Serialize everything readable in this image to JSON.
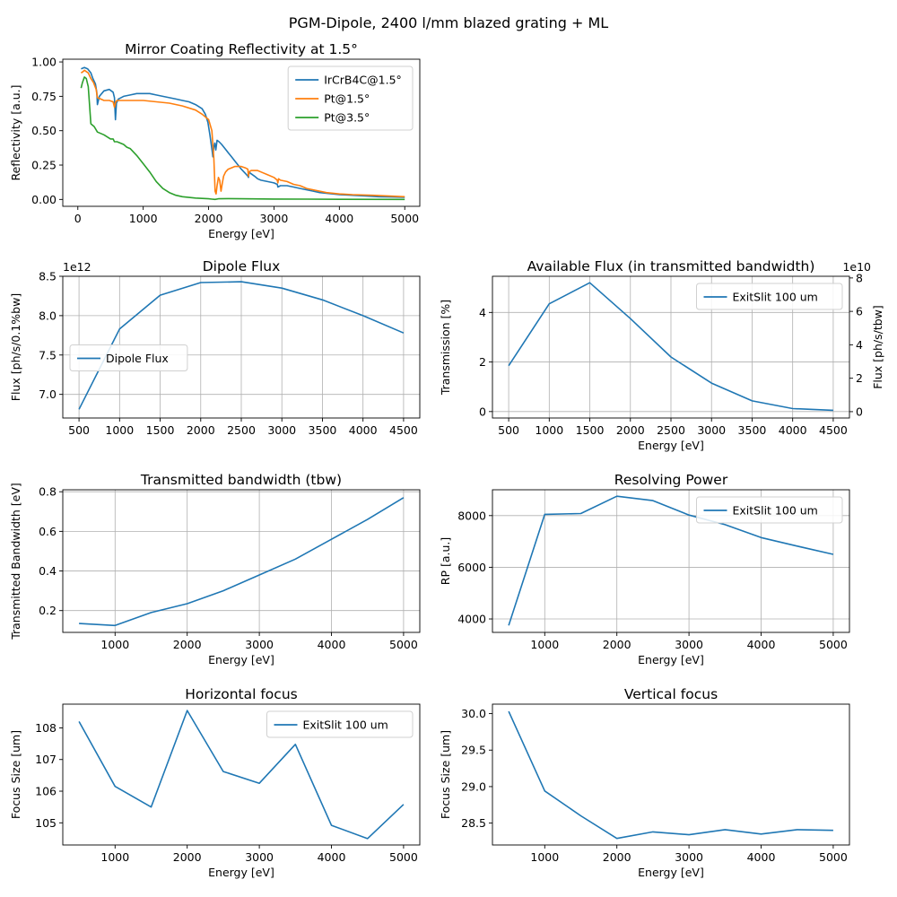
{
  "figure": {
    "suptitle": "PGM-Dipole, 2400 l/mm blazed grating + ML"
  },
  "colors": {
    "blue": "#1f77b4",
    "orange": "#ff7f0e",
    "green": "#2ca02c",
    "grid": "#b0b0b0"
  },
  "chart_data": [
    {
      "id": "reflectivity",
      "type": "line",
      "title": "Mirror Coating Reflectivity at 1.5°",
      "xlabel": "Energy [eV]",
      "ylabel": "Reflectivity [a.u.]",
      "xlim": [
        -230,
        5230
      ],
      "ylim": [
        -0.05,
        1.02
      ],
      "xticks": [
        0,
        1000,
        2000,
        3000,
        4000,
        5000
      ],
      "yticks": [
        0.0,
        0.25,
        0.5,
        0.75,
        1.0
      ],
      "ytick_decimals": 2,
      "grid": false,
      "legend": "upper right",
      "series": [
        {
          "name": "IrCrB4C@1.5°",
          "color": "#1f77b4",
          "x": [
            50,
            100,
            150,
            200,
            230,
            270,
            290,
            300,
            330,
            400,
            480,
            540,
            560,
            575,
            590,
            620,
            700,
            800,
            900,
            1000,
            1100,
            1200,
            1300,
            1400,
            1500,
            1600,
            1700,
            1800,
            1900,
            1950,
            1990,
            2020,
            2040,
            2055,
            2065,
            2080,
            2095,
            2110,
            2130,
            2160,
            2200,
            2250,
            2300,
            2350,
            2400,
            2450,
            2500,
            2560,
            2600,
            2610,
            2620,
            2640,
            2700,
            2750,
            2800,
            2900,
            3000,
            3050,
            3060,
            3100,
            3200,
            3300,
            3400,
            3500,
            3600,
            3700,
            3800,
            3900,
            4000,
            4200,
            4400,
            4600,
            4800,
            5000
          ],
          "y": [
            0.95,
            0.96,
            0.95,
            0.92,
            0.88,
            0.84,
            0.78,
            0.69,
            0.75,
            0.79,
            0.8,
            0.78,
            0.74,
            0.58,
            0.7,
            0.73,
            0.75,
            0.76,
            0.77,
            0.77,
            0.77,
            0.76,
            0.75,
            0.74,
            0.73,
            0.72,
            0.71,
            0.69,
            0.66,
            0.62,
            0.56,
            0.47,
            0.4,
            0.35,
            0.31,
            0.38,
            0.41,
            0.36,
            0.43,
            0.42,
            0.4,
            0.37,
            0.34,
            0.31,
            0.28,
            0.25,
            0.22,
            0.19,
            0.17,
            0.16,
            0.2,
            0.19,
            0.17,
            0.15,
            0.14,
            0.13,
            0.12,
            0.11,
            0.09,
            0.1,
            0.1,
            0.09,
            0.08,
            0.07,
            0.06,
            0.05,
            0.045,
            0.04,
            0.035,
            0.03,
            0.025,
            0.02,
            0.018,
            0.015
          ]
        },
        {
          "name": "Pt@1.5°",
          "color": "#ff7f0e",
          "x": [
            50,
            80,
            100,
            130,
            160,
            200,
            240,
            280,
            300,
            350,
            400,
            480,
            540,
            560,
            580,
            600,
            700,
            800,
            900,
            1000,
            1200,
            1400,
            1600,
            1800,
            1900,
            2000,
            2050,
            2080,
            2100,
            2115,
            2130,
            2150,
            2170,
            2190,
            2210,
            2230,
            2260,
            2300,
            2350,
            2400,
            2500,
            2560,
            2600,
            2610,
            2620,
            2650,
            2700,
            2750,
            2800,
            2900,
            3000,
            3050,
            3060,
            3070,
            3100,
            3200,
            3300,
            3400,
            3500,
            3600,
            3800,
            4000,
            4200,
            4500,
            5000
          ],
          "y": [
            0.92,
            0.93,
            0.94,
            0.93,
            0.92,
            0.88,
            0.85,
            0.8,
            0.74,
            0.73,
            0.72,
            0.72,
            0.71,
            0.67,
            0.71,
            0.72,
            0.72,
            0.72,
            0.72,
            0.72,
            0.71,
            0.7,
            0.68,
            0.65,
            0.62,
            0.58,
            0.5,
            0.3,
            0.06,
            0.04,
            0.1,
            0.16,
            0.14,
            0.06,
            0.12,
            0.17,
            0.2,
            0.22,
            0.23,
            0.24,
            0.24,
            0.23,
            0.22,
            0.17,
            0.2,
            0.21,
            0.21,
            0.21,
            0.2,
            0.18,
            0.16,
            0.14,
            0.12,
            0.15,
            0.14,
            0.13,
            0.11,
            0.1,
            0.08,
            0.07,
            0.05,
            0.04,
            0.035,
            0.03,
            0.02
          ]
        },
        {
          "name": "Pt@3.5°",
          "color": "#2ca02c",
          "x": [
            50,
            70,
            100,
            130,
            160,
            180,
            200,
            250,
            300,
            400,
            500,
            540,
            560,
            600,
            700,
            750,
            800,
            900,
            1000,
            1100,
            1200,
            1300,
            1400,
            1500,
            1600,
            1800,
            2000,
            2050,
            2080,
            2100,
            2150,
            2300,
            2500,
            3000,
            3500,
            4000,
            5000
          ],
          "y": [
            0.81,
            0.85,
            0.89,
            0.88,
            0.82,
            0.68,
            0.55,
            0.53,
            0.49,
            0.47,
            0.44,
            0.44,
            0.42,
            0.42,
            0.4,
            0.38,
            0.37,
            0.32,
            0.26,
            0.2,
            0.13,
            0.08,
            0.05,
            0.03,
            0.02,
            0.01,
            0.005,
            0.002,
            0.001,
            0.0,
            0.005,
            0.006,
            0.005,
            0.003,
            0.002,
            0.001,
            0.0
          ]
        }
      ]
    },
    {
      "id": "dipole-flux",
      "type": "line",
      "title": "Dipole Flux",
      "xlabel": "",
      "ylabel": "Flux [ph/s/0.1%bw]",
      "offset_text": "1e12",
      "xlim": [
        300,
        4700
      ],
      "ylim": [
        6.7,
        8.5
      ],
      "xticks": [
        500,
        1000,
        1500,
        2000,
        2500,
        3000,
        3500,
        4000,
        4500
      ],
      "yticks": [
        7.0,
        7.5,
        8.0,
        8.5
      ],
      "ytick_decimals": 1,
      "grid": true,
      "legend": "center left",
      "series": [
        {
          "name": "Dipole Flux",
          "color": "#1f77b4",
          "x": [
            500,
            1000,
            1500,
            2000,
            2500,
            3000,
            3500,
            4000,
            4500
          ],
          "y": [
            6.81,
            7.83,
            8.26,
            8.42,
            8.43,
            8.35,
            8.2,
            8.0,
            7.78
          ]
        }
      ]
    },
    {
      "id": "available-flux",
      "type": "line",
      "title": "Available Flux (in transmitted bandwidth)",
      "xlabel": "Energy [eV]",
      "ylabel": "Transmission [%]",
      "y2label": "Flux [ph/s/tbw]",
      "y2_offset_text": "1e10",
      "xlim": [
        300,
        4700
      ],
      "ylim": [
        -0.26,
        5.46
      ],
      "y2lim": [
        -0.38,
        8.1
      ],
      "xticks": [
        500,
        1000,
        1500,
        2000,
        2500,
        3000,
        3500,
        4000,
        4500
      ],
      "yticks": [
        0,
        2,
        4
      ],
      "y2ticks": [
        0,
        2,
        4,
        6,
        8
      ],
      "ytick_decimals": 0,
      "grid": true,
      "legend": "upper right",
      "series": [
        {
          "name": "ExitSlit 100 um",
          "color": "#1f77b4",
          "x": [
            500,
            1000,
            1500,
            2000,
            2500,
            3000,
            3500,
            4000,
            4500
          ],
          "y": [
            1.85,
            4.35,
            5.2,
            3.75,
            2.2,
            1.15,
            0.43,
            0.12,
            0.05
          ]
        }
      ]
    },
    {
      "id": "bandwidth",
      "type": "line",
      "title": "Transmitted bandwidth (tbw)",
      "xlabel": "Energy [eV]",
      "ylabel": "Transmitted Bandwidth [eV]",
      "xlim": [
        275,
        5225
      ],
      "ylim": [
        0.09,
        0.81
      ],
      "xticks": [
        1000,
        2000,
        3000,
        4000,
        5000
      ],
      "yticks": [
        0.2,
        0.4,
        0.6,
        0.8
      ],
      "ytick_decimals": 1,
      "grid": true,
      "legend": "none",
      "series": [
        {
          "name": "",
          "color": "#1f77b4",
          "x": [
            500,
            1000,
            1500,
            2000,
            2500,
            3000,
            3500,
            4000,
            4500,
            5000
          ],
          "y": [
            0.135,
            0.125,
            0.19,
            0.235,
            0.3,
            0.38,
            0.46,
            0.56,
            0.66,
            0.77
          ]
        }
      ]
    },
    {
      "id": "resolving-power",
      "type": "line",
      "title": "Resolving Power",
      "xlabel": "Energy [eV]",
      "ylabel": "RP [a.u.]",
      "xlim": [
        275,
        5225
      ],
      "ylim": [
        3480,
        9000
      ],
      "xticks": [
        1000,
        2000,
        3000,
        4000,
        5000
      ],
      "yticks": [
        4000,
        6000,
        8000
      ],
      "ytick_decimals": 0,
      "grid": true,
      "legend": "upper right",
      "series": [
        {
          "name": "ExitSlit 100 um",
          "color": "#1f77b4",
          "x": [
            500,
            1000,
            1500,
            2000,
            2500,
            3000,
            3500,
            4000,
            4500,
            5000
          ],
          "y": [
            3750,
            8050,
            8080,
            8750,
            8580,
            8020,
            7650,
            7150,
            6820,
            6500
          ]
        }
      ]
    },
    {
      "id": "horizontal-focus",
      "type": "line",
      "title": "Horizontal focus",
      "xlabel": "Energy [eV]",
      "ylabel": "Focus Size [um]",
      "xlim": [
        275,
        5225
      ],
      "ylim": [
        104.3,
        108.75
      ],
      "xticks": [
        1000,
        2000,
        3000,
        4000,
        5000
      ],
      "yticks": [
        105,
        106,
        107,
        108
      ],
      "ytick_decimals": 0,
      "grid": false,
      "legend": "upper right",
      "series": [
        {
          "name": "ExitSlit 100 um",
          "color": "#1f77b4",
          "x": [
            500,
            1000,
            1500,
            2000,
            2500,
            3000,
            3500,
            4000,
            4500,
            5000
          ],
          "y": [
            108.2,
            106.15,
            105.5,
            108.55,
            106.62,
            106.25,
            107.48,
            104.92,
            104.5,
            105.58
          ]
        }
      ]
    },
    {
      "id": "vertical-focus",
      "type": "line",
      "title": "Vertical focus",
      "xlabel": "Energy [eV]",
      "ylabel": "Focus Size [um]",
      "xlim": [
        275,
        5225
      ],
      "ylim": [
        28.2,
        30.13
      ],
      "xticks": [
        1000,
        2000,
        3000,
        4000,
        5000
      ],
      "yticks": [
        28.5,
        29.0,
        29.5,
        30.0
      ],
      "ytick_decimals": 1,
      "grid": false,
      "legend": "none",
      "series": [
        {
          "name": "",
          "color": "#1f77b4",
          "x": [
            500,
            1000,
            1500,
            2000,
            2500,
            3000,
            3500,
            4000,
            4500,
            5000
          ],
          "y": [
            30.03,
            28.94,
            28.6,
            28.29,
            28.38,
            28.34,
            28.41,
            28.35,
            28.41,
            28.4
          ]
        }
      ]
    }
  ]
}
